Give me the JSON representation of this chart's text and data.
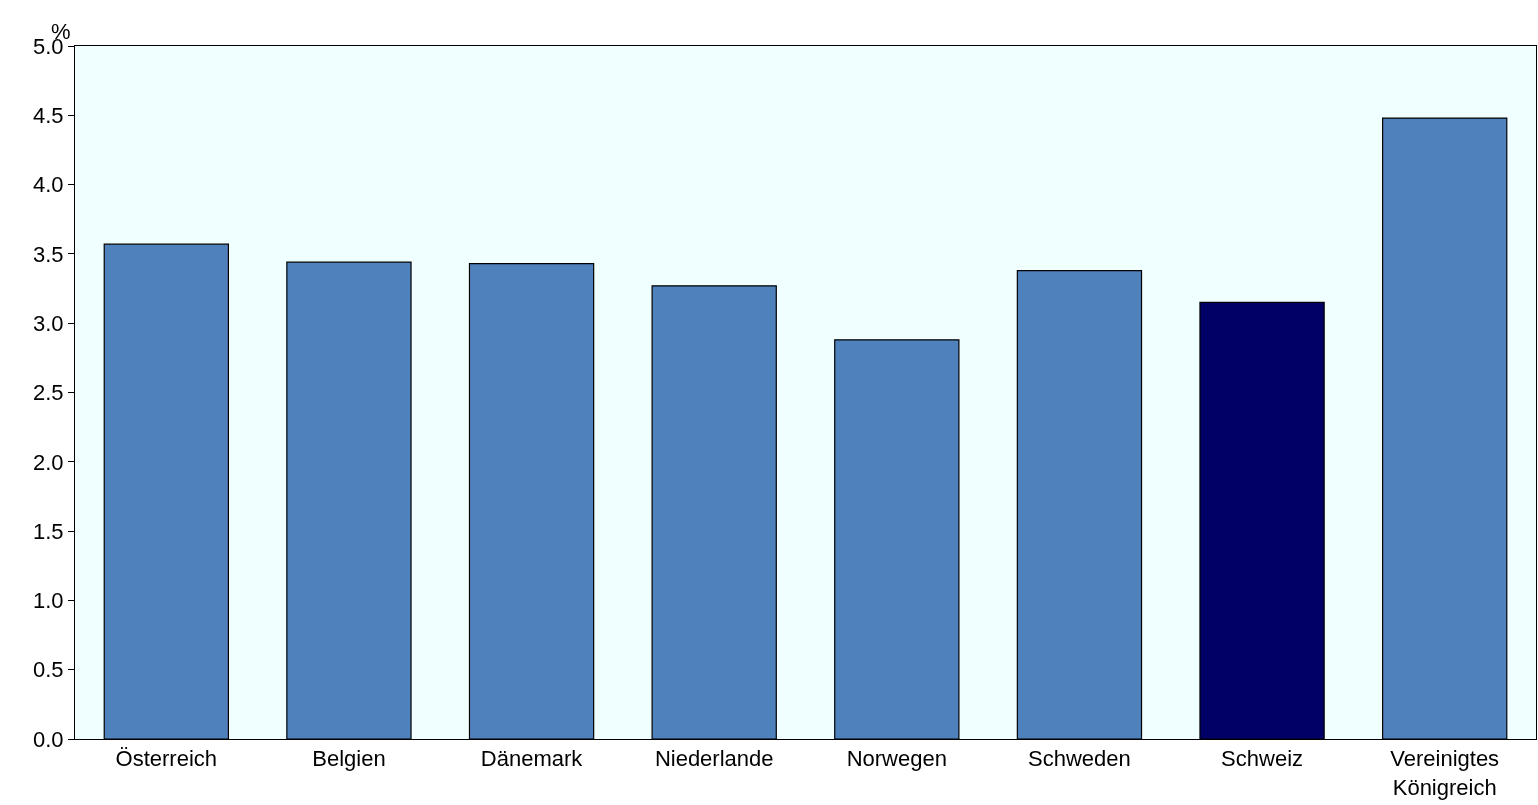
{
  "chart_data": {
    "type": "bar",
    "ylabel": "%",
    "categories": [
      "Österreich",
      "Belgien",
      "Dänemark",
      "Niederlande",
      "Norwegen",
      "Schweden",
      "Schweiz",
      "Vereinigtes\nKönigreich"
    ],
    "values": [
      3.57,
      3.44,
      3.43,
      3.27,
      2.88,
      3.38,
      3.15,
      4.48
    ],
    "colors": [
      "#4f81bd",
      "#4f81bd",
      "#4f81bd",
      "#4f81bd",
      "#4f81bd",
      "#4f81bd",
      "#000066",
      "#4f81bd"
    ],
    "ylim": [
      0,
      5
    ],
    "yticks": [
      {
        "value": 0,
        "label": "0.0"
      },
      {
        "value": 0.5,
        "label": "0.5"
      },
      {
        "value": 1,
        "label": "1.0"
      },
      {
        "value": 1.5,
        "label": "1.5"
      },
      {
        "value": 2,
        "label": "2.0"
      },
      {
        "value": 2.5,
        "label": "2.5"
      },
      {
        "value": 3,
        "label": "3.0"
      },
      {
        "value": 3.5,
        "label": "3.5"
      },
      {
        "value": 4,
        "label": "4.0"
      },
      {
        "value": 4.5,
        "label": "4.5"
      },
      {
        "value": 5,
        "label": "5.0"
      }
    ],
    "grid": false
  }
}
